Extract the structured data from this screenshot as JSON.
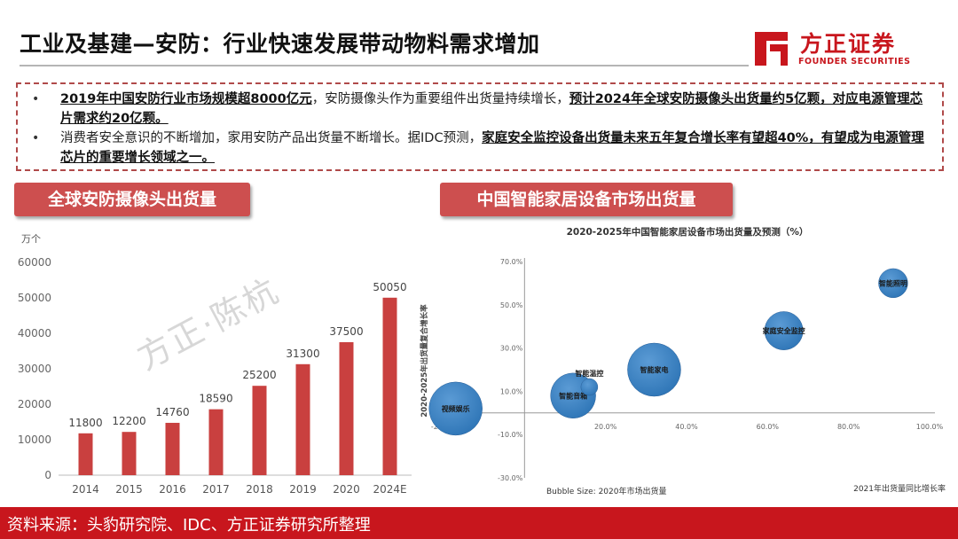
{
  "title": "工业及基建—安防：行业快速发展带动物料需求增加",
  "logo": {
    "cn": "方正证券",
    "en": "FOUNDER SECURITIES",
    "brand_color": "#c8161d"
  },
  "bullets": [
    {
      "segments": [
        {
          "text": "2019年中国安防行业市场规模超8000亿元",
          "hl": true
        },
        {
          "text": "，安防摄像头作为重要组件出货量持续增长，",
          "hl": false
        },
        {
          "text": "预计2024年全球安防摄像头出货量约5亿颗，对应电源管理芯片需求约20亿颗。",
          "hl": true
        }
      ]
    },
    {
      "segments": [
        {
          "text": "消费者安全意识的不断增加，家用安防产品出货量不断增长。据IDC预测，",
          "hl": false
        },
        {
          "text": "家庭安全监控设备出货量未来五年复合增长率有望超40%，有望成为电源管理芯片的重要增长领域之一。",
          "hl": true
        }
      ]
    }
  ],
  "section_left": "全球安防摄像头出货量",
  "section_right": "中国智能家居设备市场出货量",
  "watermark": "方正·陈杭",
  "footer": "资料来源：头豹研究院、IDC、方正证券研究所整理",
  "colors": {
    "bar": "#c9403f",
    "bubble": "#2e75b6",
    "tag": "#cd4f4f"
  },
  "chart_data": [
    {
      "type": "bar",
      "unit_label": "万个",
      "categories": [
        "2014",
        "2015",
        "2016",
        "2017",
        "2018",
        "2019",
        "2020",
        "2024E"
      ],
      "values": [
        11800,
        12200,
        14760,
        18590,
        25200,
        31300,
        37500,
        50050
      ],
      "data_labels": [
        "11800",
        "12200",
        "14760",
        "18590",
        "25200",
        "31300",
        "37500",
        "50050"
      ],
      "ylim": [
        0,
        60000
      ],
      "yticks": [
        "0",
        "10000",
        "20000",
        "30000",
        "40000",
        "50000",
        "60000"
      ],
      "grid": false
    },
    {
      "type": "scatter",
      "title": "2020-2025年中国智能家居设备市场出货量及预测（%）",
      "xlabel": "2021年出货量同比增长率",
      "ylabel": "2020-2025年出货量复合增长率",
      "bubble_note": "Bubble Size: 2020年市场出货量",
      "xlim": [
        -20,
        100
      ],
      "ylim": [
        -30,
        70
      ],
      "xticks": [
        "-20.0%",
        "20.0%",
        "40.0%",
        "60.0%",
        "80.0%",
        "100.0%"
      ],
      "xtick_values": [
        -20,
        20,
        40,
        60,
        80,
        100
      ],
      "yticks": [
        "70.0%",
        "50.0%",
        "30.0%",
        "10.0%",
        "-10.0%",
        "-30.0%"
      ],
      "ytick_values": [
        70,
        50,
        30,
        10,
        -10,
        -30
      ],
      "points": [
        {
          "label": "视频娱乐",
          "x": -17,
          "y": 2,
          "size": 1.0
        },
        {
          "label": "智能音箱",
          "x": 12,
          "y": 8,
          "size": 0.72
        },
        {
          "label": "智能温控",
          "x": 16,
          "y": 12,
          "size": 0.1
        },
        {
          "label": "智能家电",
          "x": 32,
          "y": 20,
          "size": 1.0
        },
        {
          "label": "家庭安全监控",
          "x": 64,
          "y": 38,
          "size": 0.52
        },
        {
          "label": "智能照明",
          "x": 91,
          "y": 60,
          "size": 0.3
        }
      ]
    }
  ]
}
